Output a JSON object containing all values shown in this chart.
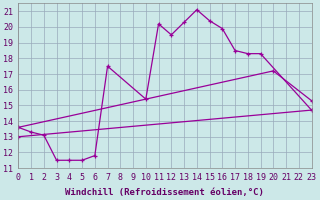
{
  "xlabel": "Windchill (Refroidissement éolien,°C)",
  "xlim": [
    0,
    23
  ],
  "ylim": [
    11,
    21.5
  ],
  "yticks": [
    11,
    12,
    13,
    14,
    15,
    16,
    17,
    18,
    19,
    20,
    21
  ],
  "xticks": [
    0,
    1,
    2,
    3,
    4,
    5,
    6,
    7,
    8,
    9,
    10,
    11,
    12,
    13,
    14,
    15,
    16,
    17,
    18,
    19,
    20,
    21,
    22,
    23
  ],
  "bg_color": "#cce8e8",
  "line_color": "#990099",
  "grid_color": "#99aabb",
  "lines": [
    {
      "x": [
        0,
        1,
        2,
        3,
        4,
        5,
        6,
        7,
        10,
        11,
        12,
        13,
        14,
        15,
        16,
        17,
        18,
        19,
        23
      ],
      "y": [
        13.6,
        13.3,
        13.1,
        11.5,
        11.5,
        11.5,
        11.8,
        17.5,
        15.4,
        20.2,
        19.5,
        20.3,
        21.1,
        20.4,
        19.9,
        18.5,
        18.3,
        18.3,
        14.7
      ]
    },
    {
      "x": [
        0,
        20,
        23
      ],
      "y": [
        13.6,
        17.2,
        15.3
      ]
    },
    {
      "x": [
        0,
        23
      ],
      "y": [
        13.0,
        14.7
      ]
    }
  ],
  "font_family": "monospace",
  "xlabel_fontsize": 6.5,
  "tick_fontsize": 6.0,
  "label_color": "#660066",
  "tick_color": "#660066"
}
